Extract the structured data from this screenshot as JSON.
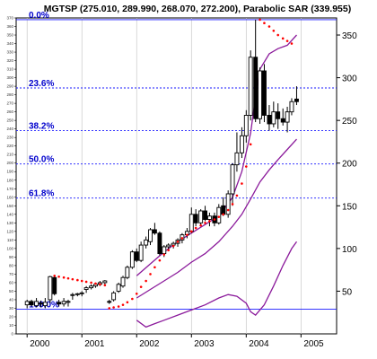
{
  "chart_data": {
    "type": "candlestick",
    "title": "MGTSP (275.010, 289.990, 268.070, 272.200), Parabolic SAR (339.955)",
    "x_ticks": [
      "2000",
      "2001",
      "2002",
      "2003",
      "2004",
      "2005"
    ],
    "x_tick_values": [
      2000.0,
      2001.0,
      2002.0,
      2003.0,
      2004.0,
      2005.0
    ],
    "xlim": [
      1999.8,
      2005.65
    ],
    "right_axis": {
      "ticks": [
        50,
        100,
        150,
        200,
        250,
        300,
        350
      ],
      "ylim": [
        0,
        370
      ]
    },
    "left_axis_ticks": [
      0,
      10,
      20,
      30,
      40,
      50,
      60,
      70,
      80,
      90,
      100,
      110,
      120,
      130,
      140,
      150,
      160,
      170,
      180,
      190,
      200,
      210,
      220,
      230,
      240,
      250,
      260,
      270,
      280,
      290,
      300,
      310,
      320,
      330,
      340,
      350,
      360,
      370
    ],
    "fib_levels": [
      {
        "label": "0.0%",
        "value": 368
      },
      {
        "label": "23.6%",
        "value": 288
      },
      {
        "label": "38.2%",
        "value": 238
      },
      {
        "label": "50.0%",
        "value": 199
      },
      {
        "label": "61.8%",
        "value": 159
      },
      {
        "label": "100.0%",
        "value": 29
      }
    ],
    "candles": [
      {
        "t": 2000.0,
        "o": 34,
        "h": 40,
        "l": 30,
        "c": 38
      },
      {
        "t": 2000.08,
        "o": 38,
        "h": 40,
        "l": 32,
        "c": 34
      },
      {
        "t": 2000.17,
        "o": 33,
        "h": 42,
        "l": 31,
        "c": 38
      },
      {
        "t": 2000.25,
        "o": 36,
        "h": 39,
        "l": 31,
        "c": 35
      },
      {
        "t": 2000.33,
        "o": 33,
        "h": 42,
        "l": 30,
        "c": 37
      },
      {
        "t": 2000.42,
        "o": 40,
        "h": 68,
        "l": 36,
        "c": 67
      },
      {
        "t": 2000.5,
        "o": 66,
        "h": 68,
        "l": 45,
        "c": 47
      },
      {
        "t": 2000.58,
        "o": 37,
        "h": 40,
        "l": 32,
        "c": 35
      },
      {
        "t": 2000.67,
        "o": 35,
        "h": 42,
        "l": 32,
        "c": 38
      },
      {
        "t": 2000.75,
        "o": 38,
        "h": 40,
        "l": 32,
        "c": 38
      },
      {
        "t": 2000.83,
        "o": 46,
        "h": 48,
        "l": 40,
        "c": 46
      },
      {
        "t": 2000.92,
        "o": 46,
        "h": 48,
        "l": 44,
        "c": 47
      },
      {
        "t": 2001.0,
        "o": 47,
        "h": 50,
        "l": 44,
        "c": 48
      },
      {
        "t": 2001.08,
        "o": 52,
        "h": 56,
        "l": 48,
        "c": 54
      },
      {
        "t": 2001.17,
        "o": 54,
        "h": 58,
        "l": 52,
        "c": 56
      },
      {
        "t": 2001.25,
        "o": 56,
        "h": 60,
        "l": 54,
        "c": 58
      },
      {
        "t": 2001.33,
        "o": 58,
        "h": 62,
        "l": 56,
        "c": 60
      },
      {
        "t": 2001.42,
        "o": 60,
        "h": 63,
        "l": 58,
        "c": 62
      },
      {
        "t": 2001.5,
        "o": 38,
        "h": 40,
        "l": 35,
        "c": 37
      },
      {
        "t": 2001.58,
        "o": 40,
        "h": 50,
        "l": 38,
        "c": 48
      },
      {
        "t": 2001.67,
        "o": 50,
        "h": 60,
        "l": 48,
        "c": 58
      },
      {
        "t": 2001.75,
        "o": 56,
        "h": 68,
        "l": 54,
        "c": 66
      },
      {
        "t": 2001.83,
        "o": 66,
        "h": 80,
        "l": 64,
        "c": 78
      },
      {
        "t": 2001.92,
        "o": 78,
        "h": 98,
        "l": 76,
        "c": 96
      },
      {
        "t": 2002.0,
        "o": 96,
        "h": 100,
        "l": 84,
        "c": 86
      },
      {
        "t": 2002.08,
        "o": 86,
        "h": 108,
        "l": 84,
        "c": 104
      },
      {
        "t": 2002.17,
        "o": 104,
        "h": 114,
        "l": 100,
        "c": 110
      },
      {
        "t": 2002.25,
        "o": 108,
        "h": 124,
        "l": 104,
        "c": 122
      },
      {
        "t": 2002.33,
        "o": 122,
        "h": 130,
        "l": 116,
        "c": 118
      },
      {
        "t": 2002.42,
        "o": 118,
        "h": 120,
        "l": 92,
        "c": 94
      },
      {
        "t": 2002.5,
        "o": 94,
        "h": 104,
        "l": 90,
        "c": 102
      },
      {
        "t": 2002.58,
        "o": 102,
        "h": 106,
        "l": 98,
        "c": 104
      },
      {
        "t": 2002.67,
        "o": 104,
        "h": 108,
        "l": 100,
        "c": 106
      },
      {
        "t": 2002.75,
        "o": 106,
        "h": 112,
        "l": 102,
        "c": 110
      },
      {
        "t": 2002.83,
        "o": 110,
        "h": 118,
        "l": 106,
        "c": 116
      },
      {
        "t": 2002.92,
        "o": 116,
        "h": 124,
        "l": 112,
        "c": 120
      },
      {
        "t": 2003.0,
        "o": 120,
        "h": 148,
        "l": 118,
        "c": 140
      },
      {
        "t": 2003.08,
        "o": 140,
        "h": 146,
        "l": 126,
        "c": 130
      },
      {
        "t": 2003.17,
        "o": 130,
        "h": 146,
        "l": 128,
        "c": 144
      },
      {
        "t": 2003.25,
        "o": 144,
        "h": 150,
        "l": 132,
        "c": 134
      },
      {
        "t": 2003.33,
        "o": 134,
        "h": 142,
        "l": 126,
        "c": 138
      },
      {
        "t": 2003.42,
        "o": 138,
        "h": 142,
        "l": 126,
        "c": 130
      },
      {
        "t": 2003.5,
        "o": 130,
        "h": 152,
        "l": 128,
        "c": 148
      },
      {
        "t": 2003.58,
        "o": 150,
        "h": 160,
        "l": 138,
        "c": 140
      },
      {
        "t": 2003.67,
        "o": 140,
        "h": 168,
        "l": 136,
        "c": 164
      },
      {
        "t": 2003.75,
        "o": 164,
        "h": 200,
        "l": 150,
        "c": 198
      },
      {
        "t": 2003.83,
        "o": 198,
        "h": 236,
        "l": 190,
        "c": 212
      },
      {
        "t": 2003.92,
        "o": 212,
        "h": 242,
        "l": 206,
        "c": 232
      },
      {
        "t": 2004.0,
        "o": 232,
        "h": 262,
        "l": 224,
        "c": 256
      },
      {
        "t": 2004.08,
        "o": 256,
        "h": 332,
        "l": 250,
        "c": 324
      },
      {
        "t": 2004.17,
        "o": 324,
        "h": 368,
        "l": 248,
        "c": 252
      },
      {
        "t": 2004.25,
        "o": 252,
        "h": 312,
        "l": 246,
        "c": 308
      },
      {
        "t": 2004.33,
        "o": 308,
        "h": 316,
        "l": 248,
        "c": 256
      },
      {
        "t": 2004.42,
        "o": 256,
        "h": 268,
        "l": 238,
        "c": 246
      },
      {
        "t": 2004.5,
        "o": 246,
        "h": 272,
        "l": 242,
        "c": 260
      },
      {
        "t": 2004.58,
        "o": 260,
        "h": 270,
        "l": 240,
        "c": 252
      },
      {
        "t": 2004.67,
        "o": 252,
        "h": 264,
        "l": 244,
        "c": 248
      },
      {
        "t": 2004.75,
        "o": 248,
        "h": 266,
        "l": 236,
        "c": 260
      },
      {
        "t": 2004.83,
        "o": 260,
        "h": 276,
        "l": 256,
        "c": 272
      },
      {
        "t": 2004.92,
        "o": 275,
        "h": 290,
        "l": 268,
        "c": 272
      }
    ],
    "sar": [
      {
        "t": 2000.5,
        "v": 68
      },
      {
        "t": 2000.58,
        "v": 67
      },
      {
        "t": 2000.67,
        "v": 66
      },
      {
        "t": 2000.75,
        "v": 65
      },
      {
        "t": 2000.83,
        "v": 64
      },
      {
        "t": 2000.92,
        "v": 63
      },
      {
        "t": 2001.0,
        "v": 62
      },
      {
        "t": 2001.08,
        "v": 61
      },
      {
        "t": 2001.17,
        "v": 60
      },
      {
        "t": 2001.25,
        "v": 59
      },
      {
        "t": 2001.33,
        "v": 58
      },
      {
        "t": 2001.42,
        "v": 57
      },
      {
        "t": 2001.5,
        "v": 30
      },
      {
        "t": 2001.58,
        "v": 31
      },
      {
        "t": 2001.67,
        "v": 32
      },
      {
        "t": 2001.75,
        "v": 34
      },
      {
        "t": 2001.83,
        "v": 37
      },
      {
        "t": 2001.92,
        "v": 41
      },
      {
        "t": 2002.0,
        "v": 47
      },
      {
        "t": 2002.08,
        "v": 55
      },
      {
        "t": 2002.17,
        "v": 62
      },
      {
        "t": 2002.25,
        "v": 70
      },
      {
        "t": 2002.33,
        "v": 78
      },
      {
        "t": 2002.42,
        "v": 86
      },
      {
        "t": 2002.5,
        "v": 93
      },
      {
        "t": 2002.58,
        "v": 98
      },
      {
        "t": 2002.67,
        "v": 103
      },
      {
        "t": 2002.75,
        "v": 108
      },
      {
        "t": 2002.83,
        "v": 112
      },
      {
        "t": 2002.92,
        "v": 116
      },
      {
        "t": 2003.0,
        "v": 120
      },
      {
        "t": 2003.08,
        "v": 124
      },
      {
        "t": 2003.17,
        "v": 127
      },
      {
        "t": 2003.25,
        "v": 130
      },
      {
        "t": 2003.33,
        "v": 132
      },
      {
        "t": 2003.42,
        "v": 134
      },
      {
        "t": 2003.5,
        "v": 137
      },
      {
        "t": 2003.58,
        "v": 140
      },
      {
        "t": 2003.67,
        "v": 145
      },
      {
        "t": 2003.75,
        "v": 152
      },
      {
        "t": 2003.83,
        "v": 162
      },
      {
        "t": 2003.92,
        "v": 176
      },
      {
        "t": 2004.0,
        "v": 196
      },
      {
        "t": 2004.08,
        "v": 222
      },
      {
        "t": 2004.25,
        "v": 368
      },
      {
        "t": 2004.33,
        "v": 364
      },
      {
        "t": 2004.42,
        "v": 360
      },
      {
        "t": 2004.5,
        "v": 355
      },
      {
        "t": 2004.58,
        "v": 350
      },
      {
        "t": 2004.67,
        "v": 346
      },
      {
        "t": 2004.75,
        "v": 343
      },
      {
        "t": 2004.83,
        "v": 340
      }
    ],
    "lines": [
      {
        "points": [
          [
            2002.0,
            68
          ],
          [
            2002.25,
            82
          ],
          [
            2002.5,
            96
          ],
          [
            2002.75,
            108
          ],
          [
            2003.0,
            118
          ],
          [
            2003.25,
            128
          ],
          [
            2003.5,
            138
          ],
          [
            2003.75,
            160
          ],
          [
            2003.92,
            190
          ],
          [
            2004.08,
            235
          ],
          [
            2004.17,
            278
          ],
          [
            2004.25,
            310
          ],
          [
            2004.42,
            328
          ],
          [
            2004.58,
            334
          ],
          [
            2004.75,
            338
          ],
          [
            2004.92,
            350
          ]
        ]
      },
      {
        "points": [
          [
            2002.0,
            42
          ],
          [
            2002.25,
            52
          ],
          [
            2002.5,
            62
          ],
          [
            2002.75,
            72
          ],
          [
            2003.0,
            84
          ],
          [
            2003.25,
            94
          ],
          [
            2003.5,
            108
          ],
          [
            2003.75,
            126
          ],
          [
            2003.92,
            140
          ],
          [
            2004.08,
            158
          ],
          [
            2004.25,
            178
          ],
          [
            2004.42,
            192
          ],
          [
            2004.58,
            204
          ],
          [
            2004.75,
            216
          ],
          [
            2004.92,
            228
          ]
        ]
      },
      {
        "points": [
          [
            2002.0,
            16
          ],
          [
            2002.17,
            8
          ],
          [
            2002.33,
            12
          ],
          [
            2002.5,
            16
          ],
          [
            2002.75,
            22
          ],
          [
            2003.0,
            28
          ],
          [
            2003.25,
            34
          ],
          [
            2003.5,
            42
          ],
          [
            2003.67,
            46
          ],
          [
            2003.83,
            44
          ],
          [
            2004.0,
            36
          ],
          [
            2004.08,
            26
          ],
          [
            2004.17,
            22
          ],
          [
            2004.33,
            34
          ],
          [
            2004.5,
            56
          ],
          [
            2004.67,
            80
          ],
          [
            2004.83,
            100
          ],
          [
            2004.92,
            108
          ]
        ]
      }
    ],
    "colors": {
      "up_candle_fill": "#ffffff",
      "down_candle_fill": "#000000",
      "candle_outline": "#000000",
      "sar_dot": "#ff0000",
      "indicator_line": "#8b1a9b",
      "fib_line": "#1a1aff",
      "fib_text": "#0000cc",
      "grid": "#c8c8c8",
      "text": "#000000"
    },
    "grid": true
  }
}
